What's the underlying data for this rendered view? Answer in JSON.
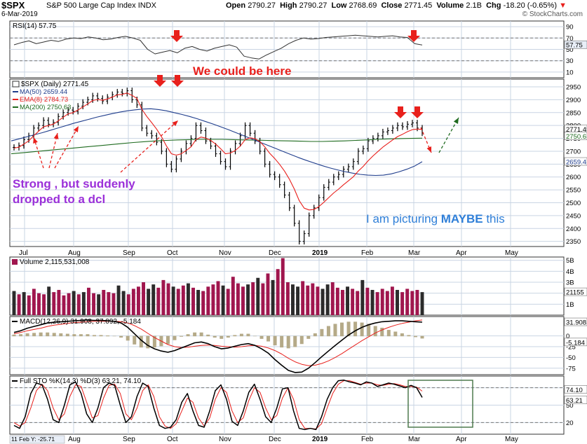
{
  "header": {
    "ticker": "$SPX",
    "name": "S&P 500 Large Cap Index",
    "exchange": "INDX",
    "date": "6-Mar-2019",
    "open_label": "Open",
    "open": "2790.27",
    "high_label": "High",
    "high": "2790.27",
    "low_label": "Low",
    "low": "2768.69",
    "close_label": "Close",
    "close": "2771.45",
    "volume_label": "Volume",
    "volume": "2.1B",
    "chg_label": "Chg",
    "chg": "-18.20 (-0.65%)",
    "chg_arrow": "▼",
    "brand": "© StockCharts.com"
  },
  "annotations": {
    "could_be_here": "We could be here",
    "strong_line1": "Strong , but suddenly",
    "strong_line2": "dropped to a dcl",
    "picturing_prefix": "I am picturing ",
    "picturing_maybe": "MAYBE",
    "picturing_suffix": " this"
  },
  "colors": {
    "price_bar": "#000000",
    "ema8": "#e8201c",
    "ma50": "#1f3d8c",
    "ma200": "#1f6b1f",
    "volume_bar": "#a0164e",
    "volume_bar_dark": "#2b2b2b",
    "macd_line": "#000000",
    "macd_signal": "#e8201c",
    "macd_hist": "#b5aa88",
    "stoch_k": "#000000",
    "stoch_d": "#e8201c",
    "grid": "#c9d4e3",
    "annotation_arrow": "#e8201c",
    "green_arrow": "#1f6b1f",
    "box": "#4e7a4e"
  },
  "chart_data": {
    "type": "line",
    "title": "$SPX S&P 500 Large Cap Index INDX",
    "x_months": [
      "Jul",
      "Aug",
      "Sep",
      "Oct",
      "Nov",
      "Dec",
      "2019",
      "Feb",
      "Mar",
      "Apr",
      "May"
    ],
    "panels": {
      "rsi": {
        "legend": "RSI(14) 57.75",
        "yticks": [
          "90",
          "70",
          "50",
          "30",
          "10"
        ],
        "ylim": [
          0,
          100
        ],
        "last_value": "57.75",
        "values": [
          58,
          62,
          65,
          60,
          63,
          66,
          64,
          68,
          70,
          69,
          72,
          70,
          67,
          68,
          71,
          73,
          70,
          66,
          50,
          42,
          45,
          48,
          44,
          52,
          55,
          50,
          47,
          52,
          55,
          58,
          54,
          38,
          35,
          33,
          40,
          46,
          52,
          60,
          66,
          70,
          68,
          69,
          71,
          72,
          73,
          74,
          75,
          74,
          73,
          72,
          73,
          74,
          72,
          71,
          60,
          57.75
        ]
      },
      "price": {
        "legend_main": "$SPX (Daily) 2771.45",
        "legend_ma50": "MA(50) 2659.44",
        "legend_ema8": "EMA(8) 2784.73",
        "legend_ma200": "MA(200) 2750.63",
        "yticks": [
          "2950",
          "2900",
          "2850",
          "2800",
          "2750",
          "2700",
          "2650",
          "2600",
          "2550",
          "2500",
          "2450",
          "2400",
          "2350"
        ],
        "ylim": [
          2330,
          2980
        ],
        "price_tag": "2771.45",
        "ma200_tag": "2750.6",
        "ma50_tag": "2659.4",
        "close": [
          2715,
          2722,
          2745,
          2760,
          2790,
          2800,
          2820,
          2805,
          2812,
          2835,
          2850,
          2860,
          2855,
          2875,
          2890,
          2900,
          2915,
          2905,
          2895,
          2910,
          2920,
          2930,
          2925,
          2935,
          2900,
          2880,
          2790,
          2770,
          2760,
          2735,
          2700,
          2650,
          2630,
          2670,
          2700,
          2730,
          2750,
          2800,
          2780,
          2740,
          2720,
          2690,
          2660,
          2640,
          2700,
          2730,
          2760,
          2800,
          2770,
          2740,
          2700,
          2650,
          2610,
          2600,
          2570,
          2530,
          2480,
          2420,
          2350,
          2380,
          2450,
          2480,
          2520,
          2560,
          2580,
          2600,
          2610,
          2630,
          2640,
          2660,
          2700,
          2710,
          2740,
          2750,
          2760,
          2775,
          2780,
          2790,
          2800,
          2795,
          2805,
          2810,
          2790,
          2771
        ],
        "ema8": [
          2712,
          2716,
          2728,
          2740,
          2760,
          2778,
          2795,
          2800,
          2805,
          2818,
          2832,
          2845,
          2850,
          2860,
          2872,
          2884,
          2897,
          2901,
          2898,
          2903,
          2910,
          2919,
          2921,
          2926,
          2917,
          2905,
          2863,
          2835,
          2811,
          2786,
          2756,
          2720,
          2690,
          2685,
          2690,
          2703,
          2717,
          2745,
          2755,
          2751,
          2742,
          2728,
          2710,
          2690,
          2693,
          2703,
          2720,
          2745,
          2752,
          2749,
          2737,
          2717,
          2692,
          2672,
          2649,
          2623,
          2591,
          2553,
          2508,
          2479,
          2472,
          2474,
          2485,
          2502,
          2520,
          2538,
          2553,
          2570,
          2585,
          2601,
          2623,
          2641,
          2663,
          2682,
          2699,
          2716,
          2730,
          2744,
          2757,
          2766,
          2776,
          2784,
          2786,
          2784.73
        ],
        "ma50": [
          2740,
          2748,
          2756,
          2764,
          2772,
          2781,
          2790,
          2799,
          2808,
          2816,
          2824,
          2832,
          2839,
          2846,
          2852,
          2857,
          2861,
          2864,
          2865,
          2862,
          2857,
          2850,
          2843,
          2835,
          2826,
          2816,
          2806,
          2795,
          2784,
          2772,
          2760,
          2748,
          2736,
          2724,
          2712,
          2700,
          2688,
          2676,
          2665,
          2655,
          2645,
          2636,
          2628,
          2621,
          2615,
          2610,
          2607,
          2606,
          2607,
          2612,
          2620,
          2630,
          2642,
          2659.44
        ],
        "ma200": [
          2690,
          2694,
          2698,
          2702,
          2706,
          2710,
          2714,
          2718,
          2722,
          2726,
          2730,
          2734,
          2737,
          2740,
          2742,
          2744,
          2745,
          2746,
          2746,
          2746,
          2745,
          2744,
          2743,
          2742,
          2741,
          2740,
          2739,
          2738,
          2738,
          2739,
          2740,
          2742,
          2744,
          2746,
          2748,
          2749,
          2750,
          2750.63
        ]
      },
      "volume": {
        "legend": "Volume 2,115,531,008",
        "yticks": [
          "5B",
          "4B",
          "3B",
          "2B",
          "1B"
        ],
        "ylim": [
          0,
          5.3
        ],
        "tag": "21155",
        "values": [
          2.2,
          1.9,
          2.1,
          1.8,
          2.4,
          2.0,
          1.9,
          2.6,
          2.1,
          2.3,
          1.8,
          2.0,
          2.2,
          1.9,
          2.1,
          2.5,
          2.0,
          1.9,
          2.3,
          2.1,
          2.0,
          2.7,
          2.2,
          1.9,
          2.4,
          2.6,
          3.0,
          2.4,
          2.8,
          2.5,
          3.2,
          2.9,
          2.6,
          2.4,
          2.7,
          2.9,
          2.5,
          2.3,
          2.2,
          2.6,
          2.8,
          3.1,
          2.7,
          2.4,
          3.5,
          2.9,
          2.6,
          2.8,
          3.0,
          3.4,
          2.9,
          3.8,
          3.2,
          4.2,
          5.2,
          3.0,
          2.8,
          2.6,
          3.1,
          2.7,
          2.9,
          2.6,
          2.4,
          2.8,
          3.0,
          2.5,
          2.3,
          2.6,
          2.4,
          2.2,
          3.2,
          2.5,
          2.3,
          2.1,
          2.4,
          2.2,
          2.6,
          2.3,
          2.1,
          2.4,
          2.2,
          2.3,
          2.1
        ]
      },
      "macd": {
        "legend": "MACD(12,26,9) 31.908, 37.092, -5.184",
        "yticks": [
          "0",
          "-25",
          "-50",
          "-75"
        ],
        "ylim": [
          -90,
          45
        ],
        "macd_tag": "31.908",
        "hist_tag": "-5.184",
        "macd": [
          8,
          12,
          18,
          22,
          26,
          30,
          32,
          33,
          34,
          35,
          36,
          37,
          36,
          36,
          35,
          34,
          30,
          20,
          5,
          -10,
          -22,
          -30,
          -35,
          -38,
          -34,
          -28,
          -22,
          -16,
          -14,
          -18,
          -25,
          -30,
          -28,
          -24,
          -20,
          -18,
          -22,
          -30,
          -40,
          -55,
          -68,
          -80,
          -85,
          -84,
          -75,
          -62,
          -48,
          -35,
          -22,
          -10,
          2,
          12,
          20,
          26,
          30,
          33,
          34,
          35,
          35,
          34,
          33,
          31.908
        ],
        "signal": [
          5,
          8,
          12,
          15,
          18,
          22,
          25,
          27,
          29,
          31,
          32,
          33,
          34,
          34,
          34,
          34,
          33,
          30,
          24,
          16,
          6,
          -4,
          -12,
          -20,
          -25,
          -27,
          -26,
          -24,
          -22,
          -21,
          -22,
          -24,
          -25,
          -26,
          -25,
          -23,
          -22,
          -24,
          -28,
          -34,
          -42,
          -52,
          -60,
          -66,
          -69,
          -68,
          -64,
          -58,
          -50,
          -41,
          -31,
          -21,
          -11,
          -2,
          7,
          14,
          20,
          25,
          29,
          32,
          35,
          37.092
        ]
      },
      "stoch": {
        "legend": "Full STO %K(14,3) %D(3) 63.21, 74.10",
        "yticks": [
          "80",
          "50",
          "20"
        ],
        "ylim": [
          0,
          100
        ],
        "k_tag": "63.21",
        "d_tag": "74.10",
        "bottom_label": "11 Feb Y: -25.71",
        "k": [
          15,
          10,
          30,
          70,
          88,
          85,
          60,
          25,
          20,
          50,
          85,
          90,
          70,
          35,
          20,
          45,
          80,
          88,
          84,
          50,
          20,
          30,
          65,
          88,
          82,
          45,
          15,
          10,
          12,
          25,
          55,
          70,
          40,
          15,
          12,
          40,
          75,
          85,
          60,
          22,
          15,
          40,
          72,
          86,
          60,
          30,
          20,
          45,
          78,
          80,
          40,
          10,
          8,
          10,
          8,
          30,
          60,
          80,
          92,
          93,
          90,
          88,
          85,
          90,
          88,
          82,
          85,
          88,
          86,
          83,
          80,
          84,
          80,
          63.21
        ],
        "d": [
          20,
          14,
          20,
          45,
          75,
          86,
          75,
          45,
          25,
          35,
          65,
          85,
          82,
          55,
          28,
          32,
          62,
          84,
          86,
          70,
          35,
          25,
          45,
          75,
          85,
          65,
          30,
          14,
          10,
          18,
          40,
          62,
          55,
          28,
          14,
          28,
          60,
          80,
          72,
          40,
          20,
          28,
          58,
          80,
          72,
          45,
          25,
          32,
          62,
          80,
          60,
          25,
          10,
          10,
          9,
          18,
          45,
          70,
          86,
          92,
          92,
          89,
          86,
          88,
          88,
          85,
          84,
          86,
          87,
          85,
          82,
          82,
          81,
          74.1
        ]
      }
    }
  }
}
